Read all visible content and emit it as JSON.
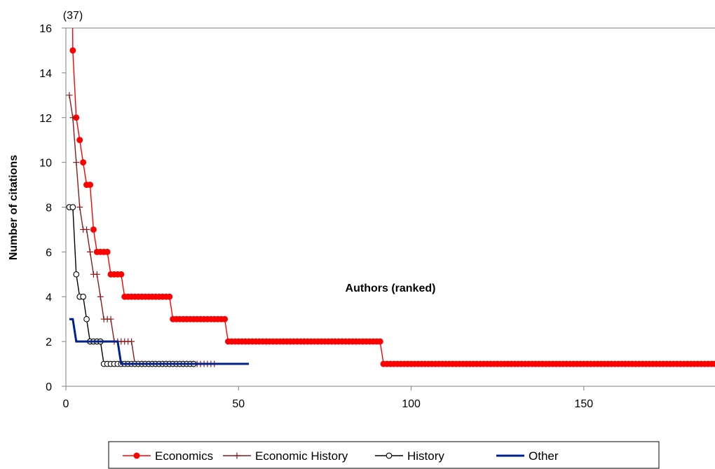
{
  "chart_data": {
    "type": "line",
    "xlabel": "Authors (ranked)",
    "ylabel": "Number of citations",
    "xlim": [
      0,
      188
    ],
    "ylim": [
      0,
      16
    ],
    "x_ticks": [
      0,
      50,
      100,
      150
    ],
    "y_ticks": [
      0,
      2,
      4,
      6,
      8,
      10,
      12,
      14,
      16
    ],
    "grid": false,
    "legend_position": "bottom",
    "annotation": "(37)",
    "colors": {
      "economics": "#ff0000",
      "economic_history": "#8b1a1a",
      "history": "#000000",
      "other": "#00208c"
    },
    "series": [
      {
        "name": "Economics",
        "marker": "filled-circle",
        "runs": [
          {
            "from": 1,
            "to": 1,
            "value": 37
          },
          {
            "from": 2,
            "to": 2,
            "value": 15
          },
          {
            "from": 3,
            "to": 3,
            "value": 12
          },
          {
            "from": 4,
            "to": 4,
            "value": 11
          },
          {
            "from": 5,
            "to": 5,
            "value": 10
          },
          {
            "from": 6,
            "to": 7,
            "value": 9
          },
          {
            "from": 8,
            "to": 8,
            "value": 7
          },
          {
            "from": 9,
            "to": 12,
            "value": 6
          },
          {
            "from": 13,
            "to": 16,
            "value": 5
          },
          {
            "from": 17,
            "to": 30,
            "value": 4
          },
          {
            "from": 31,
            "to": 46,
            "value": 3
          },
          {
            "from": 47,
            "to": 91,
            "value": 2
          },
          {
            "from": 92,
            "to": 188,
            "value": 1
          }
        ]
      },
      {
        "name": "Economic History",
        "marker": "plus",
        "runs": [
          {
            "from": 1,
            "to": 1,
            "value": 13
          },
          {
            "from": 2,
            "to": 2,
            "value": 12
          },
          {
            "from": 3,
            "to": 3,
            "value": 10
          },
          {
            "from": 4,
            "to": 4,
            "value": 8
          },
          {
            "from": 5,
            "to": 6,
            "value": 7
          },
          {
            "from": 7,
            "to": 7,
            "value": 6
          },
          {
            "from": 8,
            "to": 9,
            "value": 5
          },
          {
            "from": 10,
            "to": 10,
            "value": 4
          },
          {
            "from": 11,
            "to": 13,
            "value": 3
          },
          {
            "from": 14,
            "to": 19,
            "value": 2
          },
          {
            "from": 20,
            "to": 43,
            "value": 1
          }
        ]
      },
      {
        "name": "History",
        "marker": "open-circle",
        "runs": [
          {
            "from": 1,
            "to": 2,
            "value": 8
          },
          {
            "from": 3,
            "to": 3,
            "value": 5
          },
          {
            "from": 4,
            "to": 5,
            "value": 4
          },
          {
            "from": 6,
            "to": 6,
            "value": 3
          },
          {
            "from": 7,
            "to": 10,
            "value": 2
          },
          {
            "from": 11,
            "to": 37,
            "value": 1
          }
        ]
      },
      {
        "name": "Other",
        "marker": "none",
        "runs": [
          {
            "from": 1,
            "to": 2,
            "value": 3
          },
          {
            "from": 3,
            "to": 15,
            "value": 2
          },
          {
            "from": 16,
            "to": 53,
            "value": 1
          }
        ]
      }
    ]
  }
}
